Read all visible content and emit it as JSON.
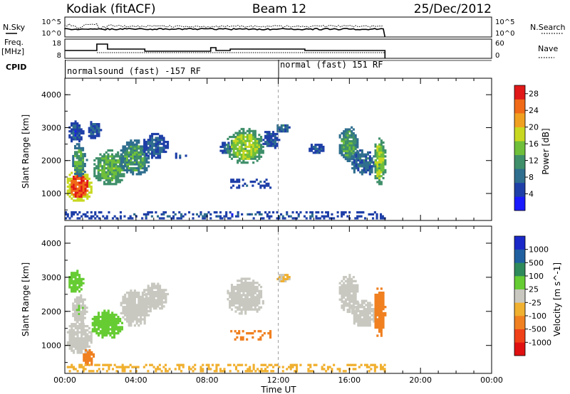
{
  "header": {
    "station": "Kodiak (fitACF)",
    "beam": "Beam 12",
    "date": "25/Dec/2012"
  },
  "side_labels": {
    "nsky": "N.Sky",
    "nsearch": "N.Search",
    "freq_top": "Freq.",
    "freq_unit": "[MHz]",
    "nave": "Nave",
    "cpid": "CPID"
  },
  "strip_axes": {
    "noise_left_top": "10^5",
    "noise_left_bottom": "10^0",
    "noise_right_top": "10^5",
    "noise_right_bottom": "10^0",
    "freq_left_top": "18",
    "freq_left_bottom": "8",
    "nave_right_top": "60",
    "nave_right_bottom": "0"
  },
  "cpid_modes": [
    {
      "label": "normalsound (fast) -157 RF",
      "start_hour": 0.0
    },
    {
      "label": "normal (fast) 151 RF",
      "start_hour": 12.0
    }
  ],
  "chart_data": [
    {
      "type": "heatmap",
      "panel": "power",
      "xlabel": "Time UT",
      "ylabel": "Slant Range [km]",
      "xlim": [
        0,
        24
      ],
      "x_ticks": [
        "00:00",
        "04:00",
        "08:00",
        "12:00",
        "16:00",
        "20:00",
        "00:00"
      ],
      "ylim": [
        180,
        4500
      ],
      "y_ticks": [
        "1000",
        "2000",
        "3000",
        "4000"
      ],
      "colorbar_label": "Power [dB]",
      "colorbar_ticks": [
        "4",
        "8",
        "12",
        "16",
        "20",
        "24",
        "28"
      ],
      "colorbar_range": [
        0,
        30
      ],
      "colorscale": [
        "#1a1aff",
        "#1f3fa8",
        "#2f6e8e",
        "#3f8f6a",
        "#6fbf3a",
        "#c8d820",
        "#f0a020",
        "#f06a18",
        "#e01818"
      ],
      "blobs": [
        {
          "t0": 0.0,
          "t1": 1.5,
          "r0": 700,
          "r1": 1700,
          "value": 26
        },
        {
          "t0": 0.3,
          "t1": 1.2,
          "r0": 1450,
          "r1": 2500,
          "value": 13
        },
        {
          "t0": 0.1,
          "t1": 1.0,
          "r0": 2500,
          "r1": 3200,
          "value": 6
        },
        {
          "t0": 1.5,
          "t1": 3.5,
          "r0": 1200,
          "r1": 2300,
          "value": 14
        },
        {
          "t0": 1.2,
          "t1": 2.0,
          "r0": 2600,
          "r1": 3200,
          "value": 6
        },
        {
          "t0": 3.0,
          "t1": 4.8,
          "r0": 1500,
          "r1": 2600,
          "value": 12
        },
        {
          "t0": 4.3,
          "t1": 5.8,
          "r0": 2000,
          "r1": 2800,
          "value": 7
        },
        {
          "t0": 6.2,
          "t1": 6.8,
          "r0": 2000,
          "r1": 2200,
          "value": 6
        },
        {
          "t0": 8.6,
          "t1": 9.3,
          "r0": 2150,
          "r1": 2550,
          "value": 7
        },
        {
          "t0": 9.0,
          "t1": 11.2,
          "r0": 1850,
          "r1": 2950,
          "value": 16
        },
        {
          "t0": 11.0,
          "t1": 12.0,
          "r0": 2300,
          "r1": 2900,
          "value": 6
        },
        {
          "t0": 9.3,
          "t1": 11.5,
          "r0": 1150,
          "r1": 1400,
          "value": 7
        },
        {
          "t0": 11.8,
          "t1": 12.6,
          "r0": 2800,
          "r1": 3100,
          "value": 8
        },
        {
          "t0": 13.6,
          "t1": 14.6,
          "r0": 2150,
          "r1": 2500,
          "value": 6
        },
        {
          "t0": 15.3,
          "t1": 16.5,
          "r0": 1900,
          "r1": 3050,
          "value": 12
        },
        {
          "t0": 16.0,
          "t1": 17.5,
          "r0": 1500,
          "r1": 2300,
          "value": 8
        },
        {
          "t0": 17.3,
          "t1": 18.0,
          "r0": 1200,
          "r1": 2700,
          "value": 16
        },
        {
          "t0": 0.0,
          "t1": 18.0,
          "r0": 220,
          "r1": 420,
          "value": 6
        }
      ]
    },
    {
      "type": "heatmap",
      "panel": "velocity",
      "xlabel": "Time UT",
      "ylabel": "Slant Range [km]",
      "xlim": [
        0,
        24
      ],
      "x_ticks": [
        "00:00",
        "04:00",
        "08:00",
        "12:00",
        "16:00",
        "20:00",
        "00:00"
      ],
      "ylim": [
        180,
        4500
      ],
      "y_ticks": [
        "1000",
        "2000",
        "3000",
        "4000"
      ],
      "colorbar_label": "Velocity [m s^-1]",
      "colorbar_ticks": [
        "1000",
        "500",
        "100",
        "25",
        "-25",
        "-100",
        "-500",
        "-1000"
      ],
      "colorscale": [
        "#1a28c8",
        "#2060a0",
        "#2e8a5a",
        "#66cc33",
        "#c8c8c0",
        "#f0b030",
        "#f08020",
        "#f04018",
        "#e01010"
      ],
      "blobs": [
        {
          "t0": 0.0,
          "t1": 1.5,
          "r0": 700,
          "r1": 1700,
          "value": 0
        },
        {
          "t0": 1.4,
          "t1": 3.2,
          "r0": 1150,
          "r1": 2000,
          "value": 80
        },
        {
          "t0": 0.3,
          "t1": 1.2,
          "r0": 1600,
          "r1": 2500,
          "value": 10
        },
        {
          "t0": 0.1,
          "t1": 1.0,
          "r0": 2500,
          "r1": 3200,
          "value": 60
        },
        {
          "t0": 3.0,
          "t1": 4.8,
          "r0": 1500,
          "r1": 2600,
          "value": 5
        },
        {
          "t0": 4.3,
          "t1": 5.8,
          "r0": 2000,
          "r1": 2800,
          "value": -5
        },
        {
          "t0": 0.9,
          "t1": 1.6,
          "r0": 350,
          "r1": 850,
          "value": -150
        },
        {
          "t0": 9.0,
          "t1": 11.2,
          "r0": 1850,
          "r1": 2950,
          "value": 0
        },
        {
          "t0": 9.3,
          "t1": 11.5,
          "r0": 1150,
          "r1": 1400,
          "value": -150
        },
        {
          "t0": 11.8,
          "t1": 12.6,
          "r0": 2800,
          "r1": 3100,
          "value": -30
        },
        {
          "t0": 15.3,
          "t1": 16.5,
          "r0": 1900,
          "r1": 3050,
          "value": 0
        },
        {
          "t0": 16.0,
          "t1": 17.5,
          "r0": 1500,
          "r1": 2300,
          "value": 5
        },
        {
          "t0": 17.3,
          "t1": 18.0,
          "r0": 1200,
          "r1": 2700,
          "value": -200
        },
        {
          "t0": 0.0,
          "t1": 18.0,
          "r0": 220,
          "r1": 420,
          "value": -80
        }
      ]
    }
  ]
}
